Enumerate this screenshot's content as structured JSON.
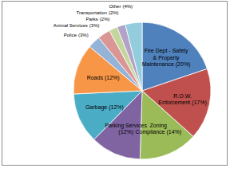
{
  "chart_data": {
    "type": "pie",
    "categories": [
      "Fire Dept - Safety & Property Maintenance",
      "R.O.W. Enforcement",
      "Zoning Compliance",
      "Parking Services",
      "Garbage",
      "Roads",
      "Police",
      "Animal Services",
      "Parks",
      "Transportation",
      "Other"
    ],
    "values": [
      20,
      17,
      14,
      12,
      12,
      12,
      3,
      3,
      2,
      2,
      4
    ],
    "value_labels": [
      "(20%)",
      "(17%)",
      "(14%)",
      "(12%)",
      "(12%)",
      "(12%)",
      "(3%)",
      "(3%)",
      "(2%)",
      "(2%)",
      "(4%)"
    ],
    "colors": [
      "#4F81BD",
      "#C0504D",
      "#9BBB59",
      "#8064A2",
      "#4BACC6",
      "#F79646",
      "#95B3D7",
      "#D99694",
      "#C3D69B",
      "#B3A2C7",
      "#93CDDD"
    ],
    "data_labels": true
  }
}
